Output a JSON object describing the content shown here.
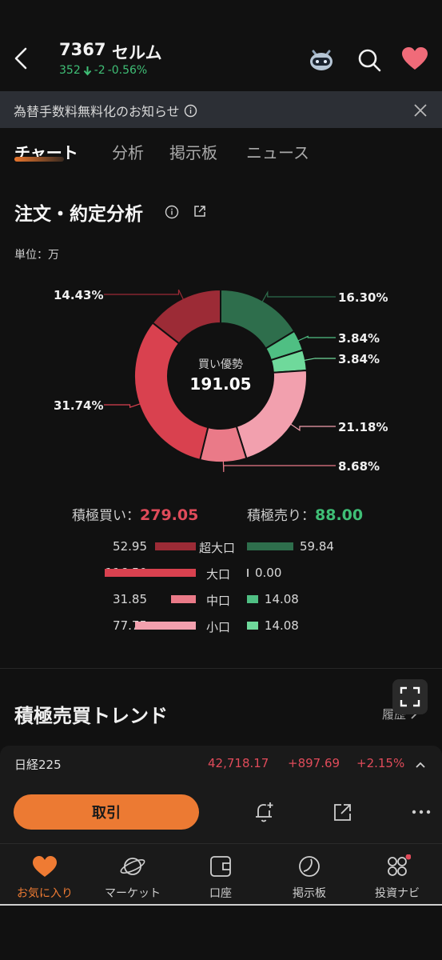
{
  "header": {
    "stock_code": "7367",
    "stock_name": "セルム",
    "price": "352",
    "change": "-2",
    "change_pct": "-0.56%"
  },
  "notice": {
    "text": "為替手数料無料化のお知らせ"
  },
  "tabs": [
    {
      "label": "チャート"
    },
    {
      "label": "分析"
    },
    {
      "label": "掲示板"
    },
    {
      "label": "ニュース"
    }
  ],
  "section": {
    "title": "注文・約定分析",
    "unit": "単位：万"
  },
  "chart_data": {
    "type": "pie",
    "center_label": "買い優勢",
    "center_value": "191.05",
    "slices": [
      {
        "label": "16.30%",
        "value": 16.3,
        "color": "#2e6e4c"
      },
      {
        "label": "3.84%",
        "value": 3.84,
        "color": "#4fbf83"
      },
      {
        "label": "3.84%",
        "value": 3.84,
        "color": "#6fd99b"
      },
      {
        "label": "21.18%",
        "value": 21.18,
        "color": "#f2a0ae"
      },
      {
        "label": "8.68%",
        "value": 8.68,
        "color": "#ea7a88"
      },
      {
        "label": "31.74%",
        "value": 31.74,
        "color": "#d9414f"
      },
      {
        "label": "14.43%",
        "value": 14.43,
        "color": "#9c2b36"
      }
    ]
  },
  "summary": {
    "buy_label": "積極買い：",
    "buy_value": "279.05",
    "sell_label": "積極売り：",
    "sell_value": "88.00"
  },
  "rows": [
    {
      "label": "超大口",
      "buy": "52.95",
      "sell": "59.84",
      "buy_color": "#9c2b36",
      "sell_color": "#2e6e4c",
      "buy_ratio": 0.45,
      "sell_ratio": 1.0
    },
    {
      "label": "大口",
      "buy": "116.50",
      "sell": "0.00",
      "buy_color": "#d9414f",
      "sell_color": "#bbbbbb",
      "buy_ratio": 1.0,
      "sell_ratio": 0.0
    },
    {
      "label": "中口",
      "buy": "31.85",
      "sell": "14.08",
      "buy_color": "#ea7a88",
      "sell_color": "#4fbf83",
      "buy_ratio": 0.27,
      "sell_ratio": 0.24
    },
    {
      "label": "小口",
      "buy": "77.75",
      "sell": "14.08",
      "buy_color": "#f2a0ae",
      "sell_color": "#6fd99b",
      "buy_ratio": 0.67,
      "sell_ratio": 0.24
    }
  ],
  "trend": {
    "title": "積極売買トレンド",
    "history": "履歴"
  },
  "index": {
    "name": "日経225",
    "value": "42,718.17",
    "change": "+897.69",
    "change_pct": "+2.15%"
  },
  "actions": {
    "trade": "取引"
  },
  "nav": [
    {
      "label": "お気に入り",
      "icon": "heart-icon"
    },
    {
      "label": "マーケット",
      "icon": "planet-icon"
    },
    {
      "label": "口座",
      "icon": "wallet-icon"
    },
    {
      "label": "掲示板",
      "icon": "board-icon"
    },
    {
      "label": "投資ナビ",
      "icon": "grid-icon"
    }
  ]
}
